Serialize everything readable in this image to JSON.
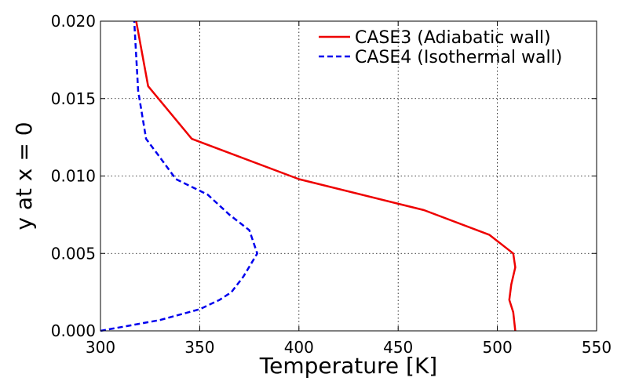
{
  "chart_data": {
    "type": "line",
    "xlabel": "Temperature [K]",
    "ylabel": "y at x = 0",
    "xlim": [
      300,
      550
    ],
    "ylim": [
      0.0,
      0.02
    ],
    "x_ticks": [
      300,
      350,
      400,
      450,
      500,
      550
    ],
    "x_tick_labels": [
      "300",
      "350",
      "400",
      "450",
      "500",
      "550"
    ],
    "y_ticks": [
      0.0,
      0.005,
      0.01,
      0.015,
      0.02
    ],
    "y_tick_labels": [
      "0.000",
      "0.005",
      "0.010",
      "0.015",
      "0.020"
    ],
    "grid": true,
    "legend_position": "top-right",
    "series": [
      {
        "name": "CASE3 (Adiabatic wall)",
        "color": "#ee0000",
        "style": "solid",
        "points": [
          {
            "x": 509,
            "y": 0.0
          },
          {
            "x": 508,
            "y": 0.0012
          },
          {
            "x": 506,
            "y": 0.002
          },
          {
            "x": 507,
            "y": 0.003
          },
          {
            "x": 509,
            "y": 0.0041
          },
          {
            "x": 508,
            "y": 0.005
          },
          {
            "x": 496,
            "y": 0.0062
          },
          {
            "x": 463,
            "y": 0.0078
          },
          {
            "x": 400,
            "y": 0.0098
          },
          {
            "x": 346,
            "y": 0.0124
          },
          {
            "x": 324,
            "y": 0.0158
          },
          {
            "x": 318,
            "y": 0.02
          }
        ]
      },
      {
        "name": "CASE4 (Isothermal wall)",
        "color": "#0000ee",
        "style": "dashed",
        "points": [
          {
            "x": 300,
            "y": 0.0
          },
          {
            "x": 330,
            "y": 0.0007
          },
          {
            "x": 350,
            "y": 0.0014
          },
          {
            "x": 360,
            "y": 0.002
          },
          {
            "x": 366,
            "y": 0.0025
          },
          {
            "x": 372,
            "y": 0.0035
          },
          {
            "x": 379,
            "y": 0.005
          },
          {
            "x": 375,
            "y": 0.0065
          },
          {
            "x": 365,
            "y": 0.0075
          },
          {
            "x": 354,
            "y": 0.0088
          },
          {
            "x": 338,
            "y": 0.0098
          },
          {
            "x": 330,
            "y": 0.0112
          },
          {
            "x": 323,
            "y": 0.0124
          },
          {
            "x": 319,
            "y": 0.0155
          },
          {
            "x": 317,
            "y": 0.02
          }
        ]
      }
    ]
  }
}
